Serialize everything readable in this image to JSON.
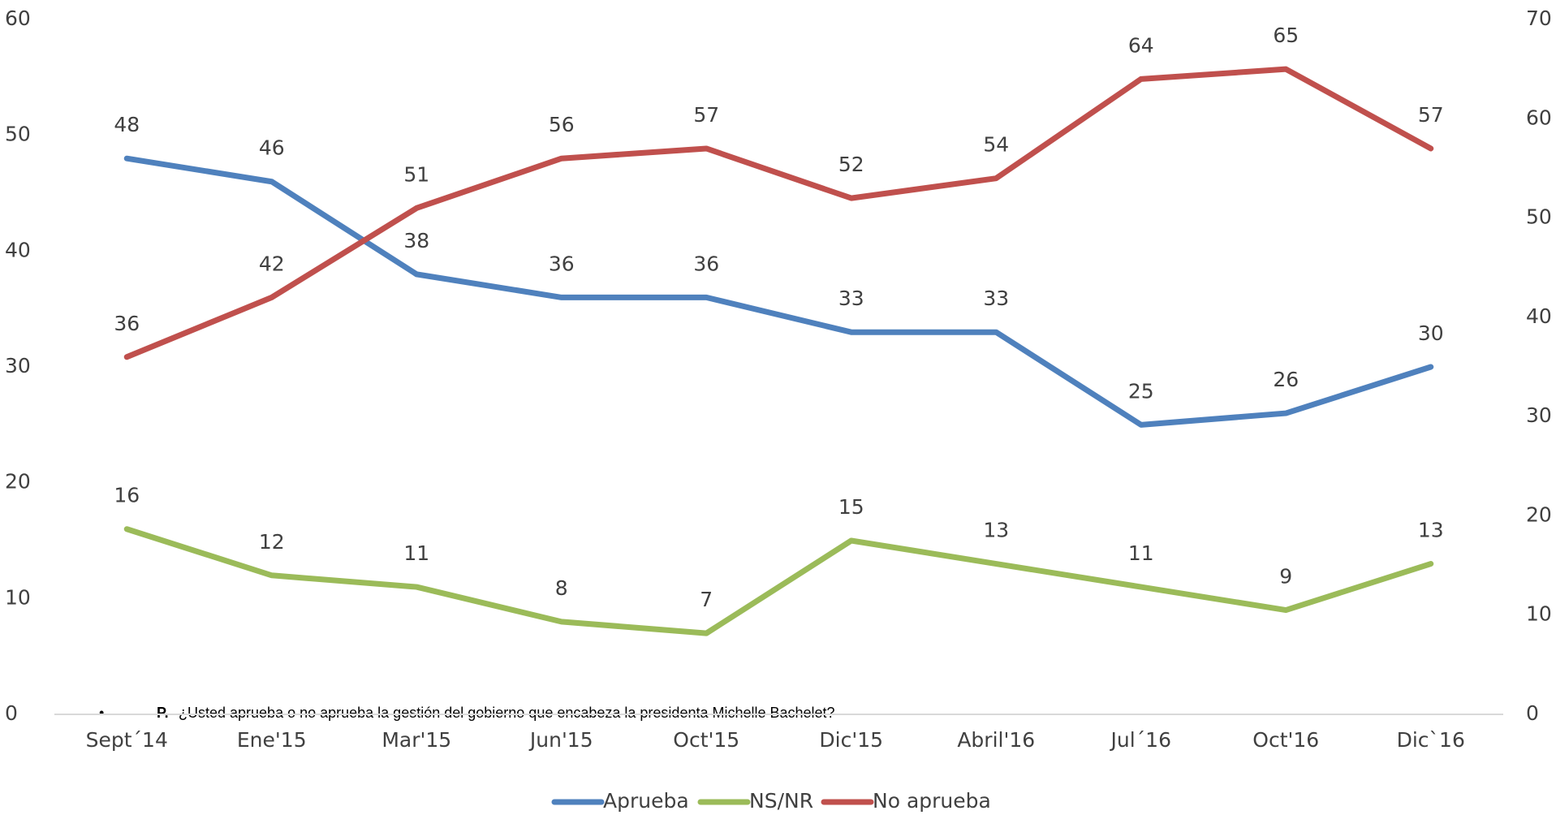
{
  "chart_data": {
    "type": "line",
    "categories": [
      "Sept´14",
      "Ene'15",
      "Mar'15",
      "Jun'15",
      "Oct'15",
      "Dic'15",
      "Abril'16",
      "Jul´16",
      "Oct'16",
      "Dic`16"
    ],
    "series": [
      {
        "name": "Aprueba",
        "color": "#4f81bd",
        "values": [
          48,
          46,
          38,
          36,
          36,
          33,
          33,
          25,
          26,
          30
        ]
      },
      {
        "name": "NS/NR",
        "color": "#9bbb59",
        "values": [
          16,
          12,
          11,
          8,
          7,
          15,
          13,
          11,
          9,
          13
        ]
      },
      {
        "name": "No aprueba",
        "color": "#c0504d",
        "axis": "y2",
        "values": [
          36,
          42,
          51,
          56,
          57,
          52,
          54,
          64,
          65,
          57
        ]
      }
    ],
    "ylim": [
      0,
      60
    ],
    "yticks": [
      0,
      10,
      20,
      30,
      40,
      50,
      60
    ],
    "y2lim": [
      0,
      70
    ],
    "y2ticks": [
      0,
      10,
      20,
      30,
      40,
      50,
      60,
      70
    ],
    "grid": false,
    "legend": "bottom",
    "note_bullet": "•",
    "note_label": "P.",
    "note": "¿Usted aprueba o no aprueba la gestión del gobierno que encabeza la presidenta Michelle Bachelet?"
  }
}
